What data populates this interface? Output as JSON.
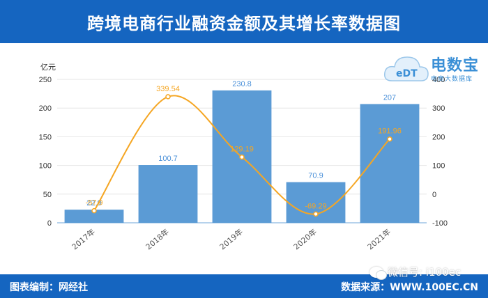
{
  "header": {
    "title": "跨境电商行业融资金额及其增长率数据图"
  },
  "logo": {
    "brand": "电数宝",
    "sub": "电商大数据库",
    "mark": "eDT"
  },
  "footer": {
    "left": "图表编制：网经社",
    "right": "数据来源：WWW.100EC.CN"
  },
  "wechat": {
    "text": "微信号: i100ec"
  },
  "colors": {
    "header_bg": "#1565c0",
    "bar": "#5b9bd5",
    "line": "#f5a623"
  },
  "chart_data": {
    "type": "bar",
    "categories": [
      "2017年",
      "2018年",
      "2019年",
      "2020年",
      "2021年"
    ],
    "y_unit_label": "亿元",
    "ylim": [
      0,
      250
    ],
    "y_ticks": [
      0,
      50,
      100,
      150,
      200,
      250
    ],
    "y2lim": [
      -100,
      400
    ],
    "y2_ticks": [
      -100,
      0,
      100,
      200,
      300,
      400
    ],
    "series": [
      {
        "type": "bar",
        "axis": "left",
        "values": [
          22.9,
          100.7,
          230.8,
          70.9,
          207
        ],
        "labels": [
          "22.9",
          "100.7",
          "230.8",
          "70.9",
          "207"
        ]
      },
      {
        "type": "line",
        "axis": "right",
        "values": [
          -57.9,
          339.54,
          129.19,
          -69.29,
          191.96
        ],
        "labels": [
          "-57.9",
          "339.54",
          "129.19",
          "-69.29",
          "191.96"
        ]
      }
    ],
    "grid": true
  }
}
